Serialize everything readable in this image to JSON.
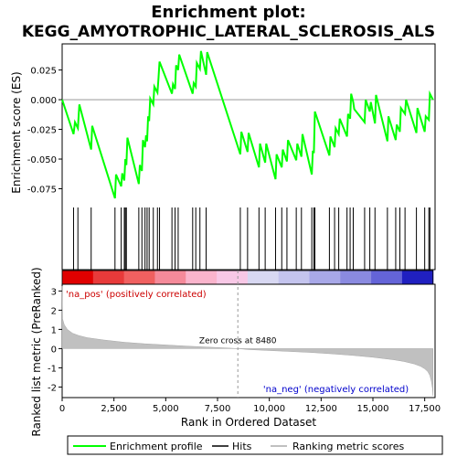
{
  "chart_data": {
    "type": "line",
    "title_line1": "Enrichment plot:",
    "title_line2": "KEGG_AMYOTROPHIC_LATERAL_SCLEROSIS_ALS",
    "es_ylabel": "Enrichment score (ES)",
    "metric_ylabel": "Ranked list metric (PreRanked)",
    "xlabel": "Rank in Ordered Dataset",
    "x_ticks": [
      0,
      2500,
      5000,
      7500,
      10000,
      12500,
      15000,
      17500
    ],
    "x_tick_labels": [
      "0",
      "2,500",
      "5,000",
      "7,500",
      "10,000",
      "12,500",
      "15,000",
      "17,500"
    ],
    "xlim": [
      0,
      18000
    ],
    "es_ylim": [
      -0.09,
      0.047
    ],
    "es_ticks": [
      0.025,
      0.0,
      -0.025,
      -0.05,
      -0.075
    ],
    "es_tick_labels": [
      "0.025",
      "0.000",
      "-0.025",
      "-0.050",
      "-0.075"
    ],
    "metric_ylim": [
      -2.55,
      3.35
    ],
    "metric_ticks": [
      3,
      2,
      1,
      0,
      -1,
      -2
    ],
    "metric_tick_labels": [
      "3",
      "2",
      "1",
      "0",
      "-1",
      "-2"
    ],
    "zero_cross_rank": 8480,
    "zero_cross_label": "Zero cross at 8480",
    "pos_label": "'na_pos' (positively correlated)",
    "neg_label": "'na_neg' (negatively correlated)",
    "legend": [
      {
        "label": "Enrichment profile",
        "color": "#00ff00"
      },
      {
        "label": "Hits",
        "color": "#000000"
      },
      {
        "label": "Ranking metric scores",
        "color": "#c0c0c0"
      }
    ],
    "es_profile": {
      "x": [
        0,
        550,
        620,
        760,
        830,
        1400,
        1450,
        2550,
        2600,
        2850,
        2900,
        3000,
        3050,
        3100,
        3150,
        3700,
        3750,
        3850,
        3900,
        4000,
        4050,
        4100,
        4150,
        4200,
        4250,
        4400,
        4450,
        4600,
        4650,
        4700,
        5300,
        5350,
        5450,
        5500,
        5600,
        5650,
        6300,
        6350,
        6450,
        6500,
        6650,
        6700,
        6950,
        7000,
        8600,
        8650,
        8950,
        9000,
        9500,
        9550,
        9800,
        9850,
        10300,
        10350,
        10600,
        10650,
        10850,
        10900,
        11300,
        11350,
        11550,
        11600,
        12050,
        12100,
        12150,
        12200,
        12900,
        12950,
        13150,
        13200,
        13350,
        13400,
        13750,
        13800,
        13900,
        13950,
        14050,
        14100,
        14600,
        14650,
        14850,
        14900,
        15100,
        15150,
        15700,
        15750,
        16100,
        16150,
        16300,
        16350,
        16550,
        16600,
        17100,
        17150,
        17500,
        17550,
        17700,
        17750,
        17900
      ],
      "y": [
        0.0,
        -0.029,
        -0.019,
        -0.024,
        -0.004,
        -0.042,
        -0.022,
        -0.083,
        -0.063,
        -0.073,
        -0.062,
        -0.068,
        -0.05,
        -0.055,
        -0.032,
        -0.071,
        -0.055,
        -0.06,
        -0.034,
        -0.04,
        -0.03,
        -0.035,
        -0.014,
        -0.018,
        0.001,
        -0.004,
        0.011,
        0.006,
        0.018,
        0.032,
        0.005,
        0.013,
        0.009,
        0.029,
        0.025,
        0.038,
        0.005,
        0.014,
        0.011,
        0.031,
        0.026,
        0.041,
        0.021,
        0.04,
        -0.046,
        -0.027,
        -0.044,
        -0.028,
        -0.057,
        -0.037,
        -0.053,
        -0.037,
        -0.067,
        -0.046,
        -0.057,
        -0.042,
        -0.052,
        -0.034,
        -0.051,
        -0.037,
        -0.048,
        -0.029,
        -0.063,
        -0.043,
        -0.045,
        -0.01,
        -0.047,
        -0.031,
        -0.04,
        -0.024,
        -0.029,
        -0.016,
        -0.031,
        -0.012,
        -0.016,
        0.005,
        -0.002,
        -0.008,
        -0.019,
        0.0,
        -0.01,
        -0.002,
        -0.02,
        0.004,
        -0.035,
        -0.014,
        -0.034,
        -0.021,
        -0.027,
        -0.007,
        -0.012,
        0.0,
        -0.028,
        -0.007,
        -0.027,
        -0.014,
        -0.017,
        0.005,
        0.0
      ]
    },
    "hits": [
      550,
      760,
      1400,
      2550,
      2850,
      3000,
      3050,
      3100,
      3700,
      3850,
      4000,
      4100,
      4200,
      4400,
      4600,
      4700,
      5300,
      5450,
      5600,
      6300,
      6450,
      6650,
      6950,
      8600,
      8950,
      9500,
      9800,
      10300,
      10600,
      10850,
      11300,
      11550,
      12050,
      12150,
      12200,
      12900,
      13150,
      13350,
      13750,
      13900,
      14050,
      14600,
      14850,
      15100,
      15700,
      16100,
      16300,
      16550,
      17100,
      17500,
      17700,
      17750
    ],
    "metric_profile": {
      "x": [
        0,
        20,
        100,
        250,
        500,
        800,
        1200,
        2000,
        3000,
        4000,
        5000,
        6000,
        7000,
        8000,
        8480,
        9000,
        10000,
        11000,
        12000,
        13000,
        14000,
        15000,
        16000,
        16500,
        17000,
        17300,
        17500,
        17650,
        17750,
        17820,
        17880,
        17900
      ],
      "y": [
        3.25,
        1.55,
        1.25,
        1.0,
        0.8,
        0.68,
        0.57,
        0.45,
        0.33,
        0.25,
        0.19,
        0.13,
        0.08,
        0.03,
        0.0,
        -0.05,
        -0.1,
        -0.15,
        -0.2,
        -0.27,
        -0.35,
        -0.45,
        -0.58,
        -0.67,
        -0.8,
        -0.92,
        -1.05,
        -1.2,
        -1.4,
        -1.7,
        -2.1,
        -2.45
      ]
    },
    "heatmap_colors": [
      "#e00000",
      "#e83a3a",
      "#f06060",
      "#f58a9a",
      "#fab4cc",
      "#f8c8e6",
      "#d8d8f2",
      "#c4c4ee",
      "#a8a8e8",
      "#8a8ae0",
      "#6464d8",
      "#2020c0"
    ]
  }
}
